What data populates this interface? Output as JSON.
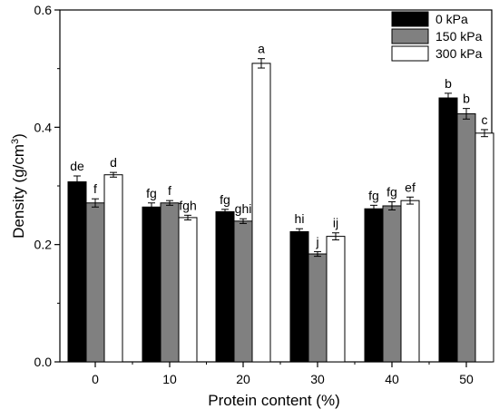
{
  "chart_data": {
    "type": "bar",
    "xlabel": "Protein content (%)",
    "ylabel_main": "Density (g/cm",
    "ylabel_sup": "3",
    "ylabel_close": ")",
    "categories": [
      "0",
      "10",
      "20",
      "30",
      "40",
      "50"
    ],
    "ylim": [
      0,
      0.6
    ],
    "yticks": [
      "0.0",
      "0.2",
      "0.4",
      "0.6"
    ],
    "ytick_values": [
      0,
      0.2,
      0.4,
      0.6
    ],
    "legend_position": "top-right",
    "series": [
      {
        "name": "0 kPa",
        "color": "#000000",
        "values": [
          0.307,
          0.264,
          0.256,
          0.222,
          0.261,
          0.45
        ],
        "errors": [
          0.01,
          0.007,
          0.004,
          0.005,
          0.006,
          0.008
        ],
        "labels": [
          "de",
          "fg",
          "fg",
          "hi",
          "fg",
          "b"
        ]
      },
      {
        "name": "150 kPa",
        "color": "#808080",
        "values": [
          0.271,
          0.271,
          0.24,
          0.184,
          0.266,
          0.423
        ],
        "errors": [
          0.007,
          0.004,
          0.004,
          0.004,
          0.007,
          0.009
        ],
        "labels": [
          "f",
          "f",
          "ghi",
          "j",
          "fg",
          "b"
        ]
      },
      {
        "name": "300 kPa",
        "color": "#ffffff",
        "values": [
          0.319,
          0.246,
          0.509,
          0.214,
          0.275,
          0.39
        ],
        "errors": [
          0.004,
          0.004,
          0.008,
          0.006,
          0.006,
          0.006
        ],
        "labels": [
          "d",
          "fgh",
          "a",
          "ij",
          "ef",
          "c"
        ]
      }
    ]
  }
}
